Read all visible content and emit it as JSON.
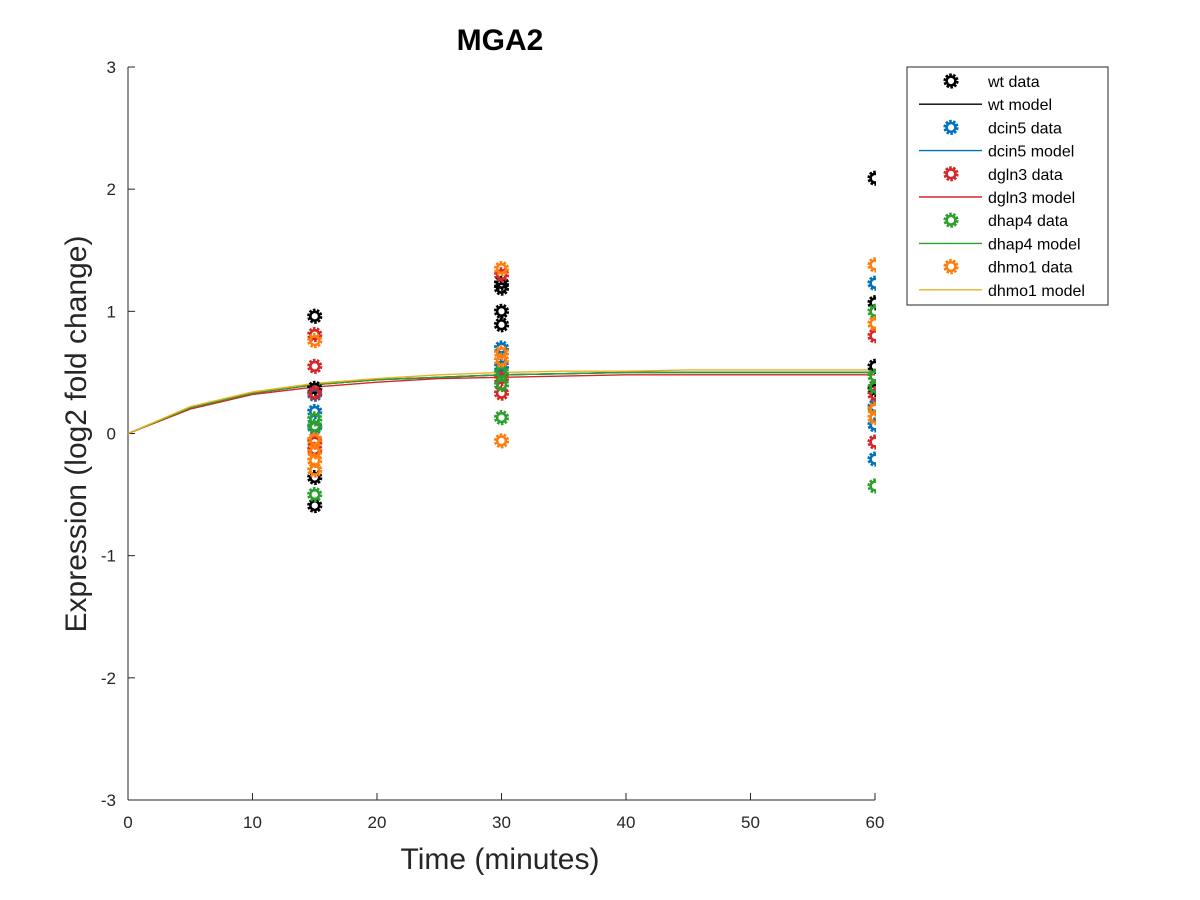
{
  "chart_data": {
    "type": "scatter",
    "title": "MGA2",
    "xlabel": "Time (minutes)",
    "ylabel": "Expression (log2 fold change)",
    "xlim": [
      0,
      60
    ],
    "ylim": [
      -3,
      3
    ],
    "xticks": [
      "0",
      "10",
      "20",
      "30",
      "40",
      "50",
      "60"
    ],
    "yticks": [
      "-3",
      "-2",
      "-1",
      "0",
      "1",
      "2",
      "3"
    ],
    "grid": false,
    "legend_position": "top-right (outside)",
    "series": [
      {
        "name": "wt data",
        "kind": "data",
        "color": "#000000",
        "points": [
          [
            15,
            0.96
          ],
          [
            15,
            0.37
          ],
          [
            15,
            -0.36
          ],
          [
            15,
            -0.59
          ],
          [
            30,
            1.23
          ],
          [
            30,
            1.19
          ],
          [
            30,
            1.0
          ],
          [
            30,
            0.89
          ],
          [
            60,
            2.09
          ],
          [
            60,
            1.07
          ],
          [
            60,
            0.55
          ],
          [
            60,
            0.36
          ]
        ]
      },
      {
        "name": "wt model",
        "kind": "model",
        "color": "#000000",
        "x": [
          0,
          5,
          10,
          15,
          20,
          25,
          30,
          35,
          40,
          45,
          50,
          55,
          60
        ],
        "y": [
          0,
          0.21,
          0.33,
          0.4,
          0.44,
          0.46,
          0.48,
          0.49,
          0.5,
          0.5,
          0.5,
          0.5,
          0.5
        ]
      },
      {
        "name": "dcin5 data",
        "kind": "data",
        "color": "#0072BD",
        "points": [
          [
            15,
            0.32
          ],
          [
            15,
            0.18
          ],
          [
            15,
            0.05
          ],
          [
            30,
            0.7
          ],
          [
            30,
            0.55
          ],
          [
            60,
            1.23
          ],
          [
            60,
            0.22
          ],
          [
            60,
            0.07
          ],
          [
            60,
            -0.21
          ]
        ]
      },
      {
        "name": "dcin5 model",
        "kind": "model",
        "color": "#0072BD",
        "x": [
          0,
          5,
          10,
          15,
          20,
          25,
          30,
          35,
          40,
          45,
          50,
          55,
          60
        ],
        "y": [
          0,
          0.21,
          0.33,
          0.4,
          0.44,
          0.46,
          0.48,
          0.49,
          0.5,
          0.5,
          0.5,
          0.5,
          0.5
        ]
      },
      {
        "name": "dgln3 data",
        "kind": "data",
        "color": "#D62728",
        "points": [
          [
            15,
            0.81
          ],
          [
            15,
            0.55
          ],
          [
            15,
            0.33
          ],
          [
            15,
            -0.07
          ],
          [
            15,
            -0.13
          ],
          [
            30,
            1.3
          ],
          [
            30,
            0.45
          ],
          [
            30,
            0.33
          ],
          [
            60,
            0.8
          ],
          [
            60,
            0.32
          ],
          [
            60,
            -0.07
          ]
        ]
      },
      {
        "name": "dgln3 model",
        "kind": "model",
        "color": "#D62728",
        "x": [
          0,
          5,
          10,
          15,
          20,
          25,
          30,
          35,
          40,
          45,
          50,
          55,
          60
        ],
        "y": [
          0,
          0.2,
          0.32,
          0.38,
          0.42,
          0.45,
          0.46,
          0.47,
          0.48,
          0.48,
          0.48,
          0.48,
          0.48
        ]
      },
      {
        "name": "dhap4 data",
        "kind": "data",
        "color": "#2CA02C",
        "points": [
          [
            15,
            0.12
          ],
          [
            15,
            0.06
          ],
          [
            15,
            -0.5
          ],
          [
            30,
            0.5
          ],
          [
            30,
            0.4
          ],
          [
            30,
            0.13
          ],
          [
            60,
            1.0
          ],
          [
            60,
            0.47
          ],
          [
            60,
            0.38
          ],
          [
            60,
            -0.43
          ]
        ]
      },
      {
        "name": "dhap4 model",
        "kind": "model",
        "color": "#2CA02C",
        "x": [
          0,
          5,
          10,
          15,
          20,
          25,
          30,
          35,
          40,
          45,
          50,
          55,
          60
        ],
        "y": [
          0,
          0.21,
          0.33,
          0.4,
          0.44,
          0.46,
          0.48,
          0.49,
          0.5,
          0.5,
          0.5,
          0.5,
          0.5
        ]
      },
      {
        "name": "dhmo1 data",
        "kind": "data",
        "color": "#FF7F0E",
        "points": [
          [
            15,
            0.76
          ],
          [
            15,
            -0.05
          ],
          [
            15,
            -0.15
          ],
          [
            15,
            -0.22
          ],
          [
            15,
            -0.3
          ],
          [
            30,
            1.35
          ],
          [
            30,
            0.66
          ],
          [
            30,
            0.6
          ],
          [
            30,
            -0.06
          ],
          [
            60,
            1.38
          ],
          [
            60,
            0.9
          ],
          [
            60,
            0.2
          ],
          [
            60,
            0.13
          ]
        ]
      },
      {
        "name": "dhmo1 model",
        "kind": "model",
        "color": "#EDB120",
        "x": [
          0,
          5,
          10,
          15,
          20,
          25,
          30,
          35,
          40,
          45,
          50,
          55,
          60
        ],
        "y": [
          0,
          0.22,
          0.34,
          0.41,
          0.45,
          0.48,
          0.5,
          0.51,
          0.51,
          0.52,
          0.52,
          0.52,
          0.52
        ]
      }
    ]
  }
}
